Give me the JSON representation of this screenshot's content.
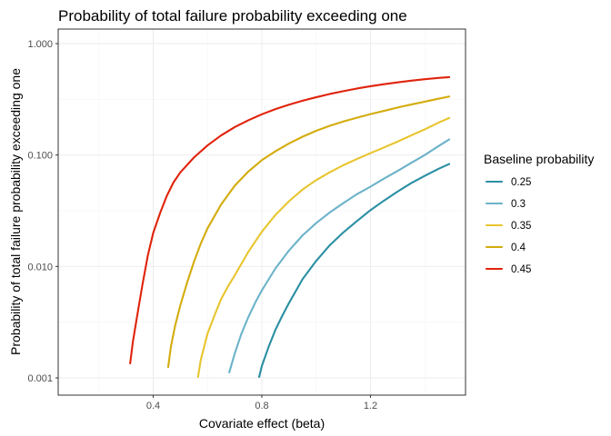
{
  "chart_data": {
    "type": "line",
    "title": "Probability of total failure probability exceeding one",
    "xlabel": "Covariate effect (beta)",
    "ylabel": "Probability of total failure probability exceeding one",
    "xlim": [
      0.05,
      1.55
    ],
    "ylim": [
      0.0007,
      1.35
    ],
    "y_scale": "log10",
    "x_ticks": [
      0.4,
      0.8,
      1.2
    ],
    "x_tick_labels": [
      "0.4",
      "0.8",
      "1.2"
    ],
    "y_ticks": [
      0.001,
      0.01,
      0.1,
      1
    ],
    "y_tick_labels": [
      "0.001",
      "0.010",
      "0.100",
      "1.000"
    ],
    "grid": true,
    "legend": {
      "title": "Baseline probability",
      "position": "right"
    },
    "series": [
      {
        "name": "0.25",
        "color": "#2a8fa3",
        "x": [
          0.79,
          0.8,
          0.825,
          0.85,
          0.875,
          0.9,
          0.95,
          1.0,
          1.05,
          1.1,
          1.15,
          1.2,
          1.25,
          1.3,
          1.35,
          1.4,
          1.45,
          1.49
        ],
        "y": [
          0.00102,
          0.00128,
          0.0019,
          0.0027,
          0.0036,
          0.0047,
          0.0077,
          0.0112,
          0.0155,
          0.0202,
          0.0255,
          0.032,
          0.039,
          0.047,
          0.056,
          0.065,
          0.075,
          0.083
        ]
      },
      {
        "name": "0.3",
        "color": "#6cb3c9",
        "x": [
          0.68,
          0.7,
          0.725,
          0.75,
          0.775,
          0.8,
          0.85,
          0.9,
          0.95,
          1.0,
          1.05,
          1.1,
          1.15,
          1.2,
          1.25,
          1.3,
          1.35,
          1.4,
          1.45,
          1.49
        ],
        "y": [
          0.00112,
          0.00165,
          0.0025,
          0.0035,
          0.0047,
          0.0061,
          0.0096,
          0.0139,
          0.019,
          0.0245,
          0.0305,
          0.037,
          0.0445,
          0.052,
          0.0615,
          0.072,
          0.085,
          0.1,
          0.12,
          0.138
        ]
      },
      {
        "name": "0.35",
        "color": "#e8c52e",
        "x": [
          0.565,
          0.575,
          0.6,
          0.625,
          0.65,
          0.675,
          0.7,
          0.75,
          0.8,
          0.85,
          0.9,
          0.95,
          1.0,
          1.05,
          1.1,
          1.15,
          1.2,
          1.25,
          1.3,
          1.35,
          1.4,
          1.45,
          1.49
        ],
        "y": [
          0.00102,
          0.00145,
          0.0025,
          0.0036,
          0.0051,
          0.0066,
          0.0083,
          0.0135,
          0.0205,
          0.029,
          0.0385,
          0.049,
          0.0595,
          0.07,
          0.081,
          0.092,
          0.104,
          0.117,
          0.132,
          0.15,
          0.17,
          0.195,
          0.215
        ]
      },
      {
        "name": "0.4",
        "color": "#d4ac0d",
        "x": [
          0.455,
          0.465,
          0.48,
          0.5,
          0.525,
          0.55,
          0.575,
          0.6,
          0.65,
          0.7,
          0.75,
          0.8,
          0.85,
          0.9,
          0.95,
          1.0,
          1.05,
          1.1,
          1.15,
          1.2,
          1.25,
          1.3,
          1.35,
          1.4,
          1.45,
          1.49
        ],
        "y": [
          0.00125,
          0.0019,
          0.0029,
          0.0045,
          0.0072,
          0.011,
          0.016,
          0.022,
          0.036,
          0.053,
          0.071,
          0.09,
          0.108,
          0.127,
          0.146,
          0.165,
          0.183,
          0.2,
          0.216,
          0.233,
          0.249,
          0.267,
          0.284,
          0.301,
          0.32,
          0.335
        ]
      },
      {
        "name": "0.45",
        "color": "#e0230c",
        "x": [
          0.315,
          0.325,
          0.34,
          0.36,
          0.38,
          0.4,
          0.425,
          0.45,
          0.475,
          0.5,
          0.55,
          0.6,
          0.65,
          0.7,
          0.75,
          0.8,
          0.85,
          0.9,
          0.95,
          1.0,
          1.05,
          1.1,
          1.15,
          1.2,
          1.25,
          1.3,
          1.35,
          1.4,
          1.45,
          1.49
        ],
        "y": [
          0.00135,
          0.0021,
          0.0035,
          0.0068,
          0.0125,
          0.02,
          0.03,
          0.043,
          0.057,
          0.07,
          0.095,
          0.122,
          0.15,
          0.178,
          0.205,
          0.232,
          0.258,
          0.283,
          0.307,
          0.33,
          0.353,
          0.374,
          0.395,
          0.414,
          0.432,
          0.449,
          0.465,
          0.479,
          0.492,
          0.5
        ]
      }
    ]
  }
}
